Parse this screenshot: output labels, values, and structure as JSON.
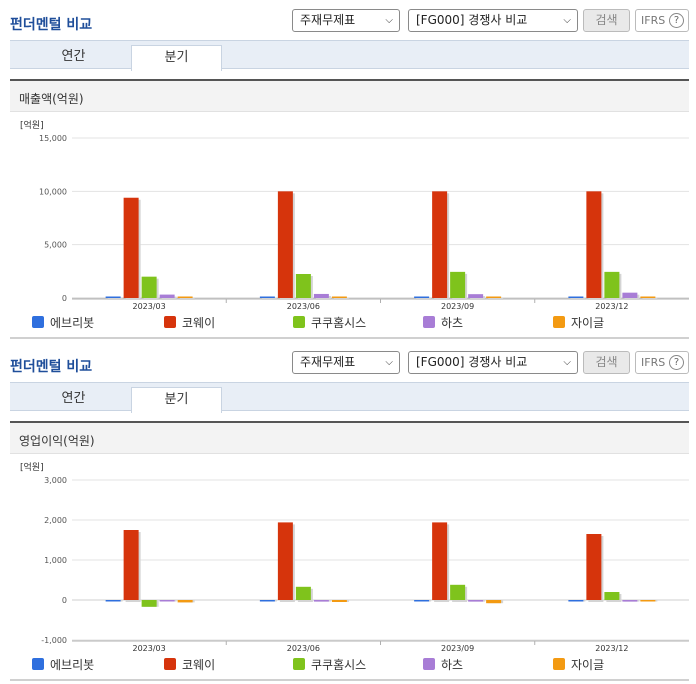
{
  "header": {
    "title": "펀더멘털 비교",
    "statement_select": "주재무제표",
    "compare_select": "[FG000] 경쟁사 비교",
    "search_label": "검색",
    "ifrs_label": "IFRS",
    "help_glyph": "?"
  },
  "tabs": [
    "연간",
    "분기"
  ],
  "active_tab": "분기",
  "legend": [
    {
      "name": "에브리봇",
      "color": "#2f6fde"
    },
    {
      "name": "코웨이",
      "color": "#d6340c"
    },
    {
      "name": "쿠쿠홈시스",
      "color": "#7fc31c"
    },
    {
      "name": "하츠",
      "color": "#a87dd6"
    },
    {
      "name": "자이글",
      "color": "#f39a12"
    }
  ],
  "charts": [
    {
      "panel_title": "매출액(억원)",
      "chart_data": {
        "type": "bar",
        "title": "매출액(억원)",
        "unit_label": "[억원]",
        "categories": [
          "2023/03",
          "2023/06",
          "2023/09",
          "2023/12"
        ],
        "yticks": [
          "15,000",
          "10,000",
          "5,000",
          "0"
        ],
        "ylim": [
          0,
          15000
        ],
        "series": [
          {
            "name": "에브리봇",
            "values": [
              70,
              80,
              75,
              70
            ]
          },
          {
            "name": "코웨이",
            "values": [
              9400,
              10000,
              10000,
              10000
            ]
          },
          {
            "name": "쿠쿠홈시스",
            "values": [
              2000,
              2250,
              2450,
              2450
            ]
          },
          {
            "name": "하츠",
            "values": [
              320,
              380,
              360,
              500
            ]
          },
          {
            "name": "자이글",
            "values": [
              30,
              30,
              30,
              20
            ]
          }
        ]
      }
    },
    {
      "panel_title": "영업이익(억원)",
      "chart_data": {
        "type": "bar",
        "title": "영업이익(억원)",
        "unit_label": "[억원]",
        "categories": [
          "2023/03",
          "2023/06",
          "2023/09",
          "2023/12"
        ],
        "yticks": [
          "3,000",
          "2,000",
          "1,000",
          "0",
          "-1,000"
        ],
        "ylim": [
          -1000,
          3000
        ],
        "series": [
          {
            "name": "에브리봇",
            "values": [
              -10,
              -10,
              -10,
              -10
            ]
          },
          {
            "name": "코웨이",
            "values": [
              1750,
              1940,
              1940,
              1650
            ]
          },
          {
            "name": "쿠쿠홈시스",
            "values": [
              -170,
              330,
              380,
              200
            ]
          },
          {
            "name": "하츠",
            "values": [
              -20,
              -40,
              -40,
              -40
            ]
          },
          {
            "name": "자이글",
            "values": [
              -60,
              -50,
              -80,
              -10
            ]
          }
        ]
      }
    }
  ]
}
